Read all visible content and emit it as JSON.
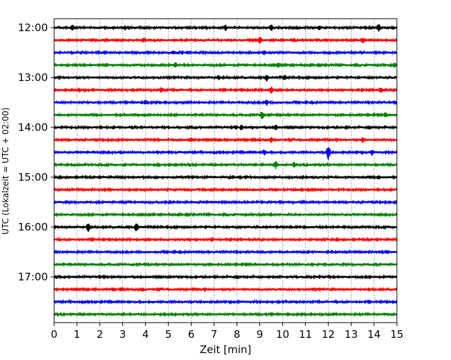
{
  "chart_data": {
    "type": "line",
    "title": "",
    "xlabel": "Zeit  [min]",
    "ylabel": "UTC (Lokalzeit = UTC + 02:00)",
    "xlim": [
      0,
      15
    ],
    "x_ticks": [
      "0",
      "1",
      "2",
      "3",
      "4",
      "5",
      "6",
      "7",
      "8",
      "9",
      "10",
      "11",
      "12",
      "13",
      "14",
      "15"
    ],
    "y_tick_labels": [
      "12:00",
      "13:00",
      "14:00",
      "15:00",
      "16:00",
      "17:00"
    ],
    "grid": true,
    "trace_interval_minutes": 15,
    "traces_per_hour": 4,
    "trace_color_cycle": [
      "#000000",
      "#ff0000",
      "#0000ff",
      "#008000"
    ],
    "traces": [
      {
        "start": "12:00",
        "events": [
          [
            0.8,
            4
          ],
          [
            3.1,
            3
          ],
          [
            7.5,
            4
          ],
          [
            9.5,
            5
          ],
          [
            11.6,
            3
          ],
          [
            14.2,
            6
          ]
        ]
      },
      {
        "start": "12:15",
        "events": [
          [
            3.9,
            4
          ],
          [
            9.0,
            5
          ],
          [
            13.5,
            4
          ]
        ]
      },
      {
        "start": "12:30",
        "events": [
          [
            5.2,
            3
          ],
          [
            9.2,
            3
          ]
        ]
      },
      {
        "start": "12:45",
        "events": [
          [
            5.3,
            4
          ],
          [
            9.8,
            4
          ],
          [
            14.9,
            4
          ]
        ]
      },
      {
        "start": "13:00",
        "events": [
          [
            7.2,
            3
          ],
          [
            9.3,
            5
          ],
          [
            10.1,
            4
          ]
        ]
      },
      {
        "start": "13:15",
        "events": [
          [
            1.1,
            3
          ],
          [
            4.7,
            4
          ],
          [
            9.5,
            5
          ],
          [
            14.3,
            4
          ]
        ]
      },
      {
        "start": "13:30",
        "events": [
          [
            4.0,
            3
          ],
          [
            9.3,
            4
          ],
          [
            14.9,
            3
          ]
        ]
      },
      {
        "start": "13:45",
        "events": [
          [
            9.1,
            6
          ],
          [
            14.5,
            4
          ]
        ]
      },
      {
        "start": "14:00",
        "events": [
          [
            8.2,
            4
          ],
          [
            9.7,
            4
          ]
        ]
      },
      {
        "start": "14:15",
        "events": [
          [
            6.0,
            3
          ],
          [
            9.5,
            4
          ],
          [
            13.5,
            4
          ]
        ]
      },
      {
        "start": "14:30",
        "events": [
          [
            9.2,
            4
          ],
          [
            12.0,
            11
          ],
          [
            13.9,
            4
          ]
        ]
      },
      {
        "start": "14:45",
        "events": [
          [
            9.7,
            6
          ],
          [
            10.5,
            4
          ]
        ]
      },
      {
        "start": "15:00",
        "events": [
          [
            14.2,
            3
          ]
        ]
      },
      {
        "start": "15:15",
        "events": []
      },
      {
        "start": "15:30",
        "events": []
      },
      {
        "start": "15:45",
        "events": []
      },
      {
        "start": "16:00",
        "events": [
          [
            1.5,
            7
          ],
          [
            3.6,
            7
          ]
        ]
      },
      {
        "start": "16:15",
        "events": [
          [
            6.9,
            3
          ]
        ]
      },
      {
        "start": "16:30",
        "events": []
      },
      {
        "start": "16:45",
        "events": []
      },
      {
        "start": "17:00",
        "events": []
      },
      {
        "start": "17:15",
        "events": []
      },
      {
        "start": "17:30",
        "events": []
      },
      {
        "start": "17:45",
        "events": []
      }
    ]
  }
}
